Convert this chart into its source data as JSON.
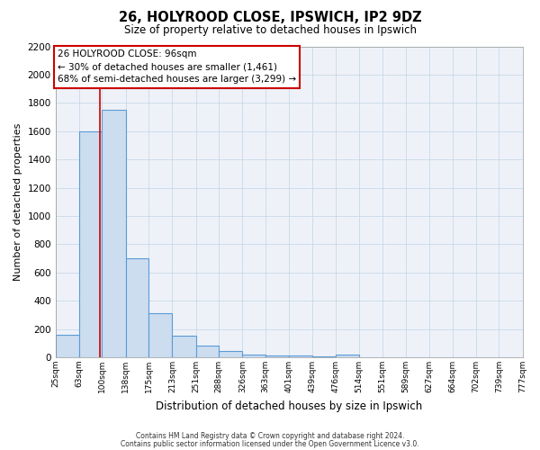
{
  "title": "26, HOLYROOD CLOSE, IPSWICH, IP2 9DZ",
  "subtitle": "Size of property relative to detached houses in Ipswich",
  "xlabel": "Distribution of detached houses by size in Ipswich",
  "ylabel": "Number of detached properties",
  "bar_color": "#ccddf0",
  "bar_edgecolor": "#5b9bd5",
  "grid_color": "#c8d8e8",
  "background_color": "#eef2f8",
  "vline_x": 96,
  "vline_color": "#cc0000",
  "bin_edges": [
    25,
    63,
    100,
    138,
    175,
    213,
    251,
    288,
    326,
    363,
    401,
    439,
    476,
    514,
    551,
    589,
    627,
    664,
    702,
    739,
    777
  ],
  "bin_labels": [
    "25sqm",
    "63sqm",
    "100sqm",
    "138sqm",
    "175sqm",
    "213sqm",
    "251sqm",
    "288sqm",
    "326sqm",
    "363sqm",
    "401sqm",
    "439sqm",
    "476sqm",
    "514sqm",
    "551sqm",
    "589sqm",
    "627sqm",
    "664sqm",
    "702sqm",
    "739sqm",
    "777sqm"
  ],
  "bar_heights": [
    160,
    1600,
    1750,
    700,
    315,
    155,
    80,
    45,
    20,
    10,
    15,
    5,
    20,
    0,
    0,
    0,
    0,
    0,
    0,
    0
  ],
  "ylim": [
    0,
    2200
  ],
  "yticks": [
    0,
    200,
    400,
    600,
    800,
    1000,
    1200,
    1400,
    1600,
    1800,
    2000,
    2200
  ],
  "annotation_title": "26 HOLYROOD CLOSE: 96sqm",
  "annotation_line1": "← 30% of detached houses are smaller (1,461)",
  "annotation_line2": "68% of semi-detached houses are larger (3,299) →",
  "footer1": "Contains HM Land Registry data © Crown copyright and database right 2024.",
  "footer2": "Contains public sector information licensed under the Open Government Licence v3.0."
}
